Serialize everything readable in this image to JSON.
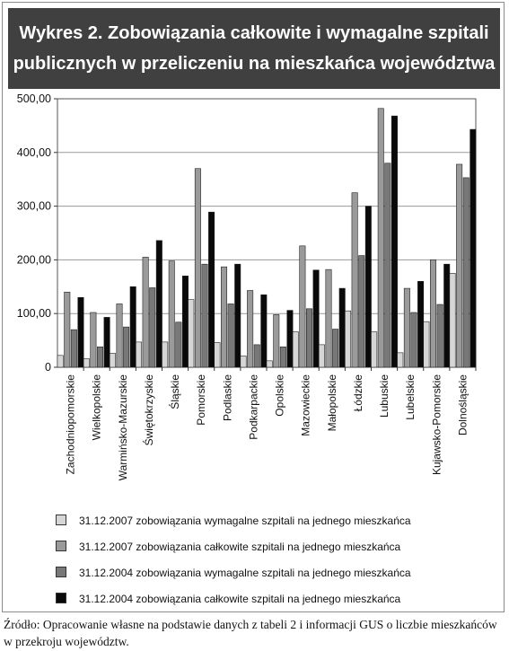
{
  "title": {
    "line1": "Wykres 2. Zobowiązania całkowite i wymagalne szpitali",
    "line2": "publicznych w przeliczeniu na mieszkańca województwa"
  },
  "chart_data": {
    "type": "bar",
    "categories": [
      "Zachodniopomorskie",
      "Wielkopolskie",
      "Warmińsko-Mazurskie",
      "Świętokrzyskie",
      "Śląskie",
      "Pomorskie",
      "Podlaskie",
      "Podkarpackie",
      "Opolskie",
      "Mazowieckie",
      "Małopolskie",
      "Łódzkie",
      "Lubuskie",
      "Lubelskie",
      "Kujawsko-Pomorskie",
      "Dolnośląskie"
    ],
    "series": [
      {
        "name": "31.12.2007 zobowiązania wymagalne szpitali na jednego mieszkańca",
        "color": "#d6d6d6",
        "values": [
          22,
          16,
          26,
          47,
          47,
          126,
          46,
          21,
          12,
          66,
          42,
          105,
          66,
          27,
          85,
          175
        ]
      },
      {
        "name": "31.12.2007 zobowiązania całkowite szpitali na jednego mieszkańca",
        "color": "#9a9a9a",
        "values": [
          140,
          102,
          118,
          205,
          198,
          370,
          187,
          143,
          98,
          226,
          182,
          325,
          482,
          147,
          200,
          378
        ]
      },
      {
        "name": "31.12.2004 zobowiązania wymagalne szpitali na jednego mieszkańca",
        "color": "#787878",
        "values": [
          70,
          38,
          75,
          148,
          84,
          192,
          118,
          42,
          38,
          109,
          71,
          208,
          380,
          102,
          117,
          353
        ]
      },
      {
        "name": "31.12.2004 zobowiązania całkowite szpitali na jednego mieszkańca",
        "color": "#0a0a0a",
        "values": [
          130,
          93,
          150,
          236,
          170,
          289,
          192,
          135,
          106,
          181,
          147,
          300,
          468,
          160,
          192,
          443
        ]
      }
    ],
    "yticks": [
      "0",
      "100,00",
      "200,00",
      "300,00",
      "400,00",
      "500,00"
    ],
    "ylim": [
      0,
      500
    ],
    "grid": true,
    "legend_position": "bottom"
  },
  "source": "Źródło: Opracowanie własne na podstawie danych z tabeli 2 i informacji GUS o liczbie mieszkańców w przekroju województw."
}
